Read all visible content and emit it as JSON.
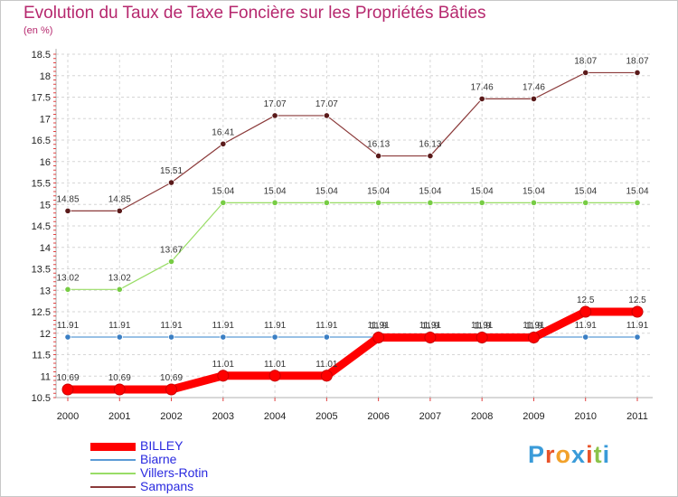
{
  "chart_data": {
    "type": "line",
    "title": "Evolution du Taux de Taxe Foncière sur les Propriétés Bâties",
    "ylabel": "(en %)",
    "ylim": [
      10.5,
      18.5
    ],
    "yticks": [
      "10.5",
      "11",
      "11.5",
      "12",
      "12.5",
      "13",
      "13.5",
      "14",
      "14.5",
      "15",
      "15.5",
      "16",
      "16.5",
      "17",
      "17.5",
      "18",
      "18.5"
    ],
    "categories": [
      "2000",
      "2001",
      "2002",
      "2003",
      "2004",
      "2005",
      "2006",
      "2007",
      "2008",
      "2009",
      "2010",
      "2011"
    ],
    "series": [
      {
        "name": "BILLEY",
        "color": "#ff0000",
        "marker": "#ff0000",
        "width": "thick",
        "values": [
          10.69,
          10.69,
          10.69,
          11.01,
          11.01,
          11.01,
          11.9,
          11.9,
          11.9,
          11.9,
          12.5,
          12.5
        ],
        "labels": [
          "10.69",
          "10.69",
          "10.69",
          "11.01",
          "11.01",
          "11.01",
          "11.9",
          "11.9",
          "11.9",
          "11.9",
          "12.5",
          "12.5"
        ]
      },
      {
        "name": "Biarne",
        "color": "#5b9bd5",
        "marker": "#3b7fc4",
        "width": "thin",
        "values": [
          11.91,
          11.91,
          11.91,
          11.91,
          11.91,
          11.91,
          11.91,
          11.91,
          11.91,
          11.91,
          11.91,
          11.91
        ],
        "labels": [
          "11.91",
          "11.91",
          "11.91",
          "11.91",
          "11.91",
          "11.91",
          "11.91",
          "11.91",
          "11.91",
          "11.91",
          "11.91",
          "11.91"
        ]
      },
      {
        "name": "Villers-Rotin",
        "color": "#99dd66",
        "marker": "#77cc44",
        "width": "thin",
        "values": [
          13.02,
          13.02,
          13.67,
          15.04,
          15.04,
          15.04,
          15.04,
          15.04,
          15.04,
          15.04,
          15.04,
          15.04
        ],
        "labels": [
          "13.02",
          "13.02",
          "13.67",
          "15.04",
          "15.04",
          "15.04",
          "15.04",
          "15.04",
          "15.04",
          "15.04",
          "15.04",
          "15.04"
        ]
      },
      {
        "name": "Sampans",
        "color": "#8b3a3a",
        "marker": "#5a1a1a",
        "width": "thin",
        "values": [
          14.85,
          14.85,
          15.51,
          16.41,
          17.07,
          17.07,
          16.13,
          16.13,
          17.46,
          17.46,
          18.07,
          18.07
        ],
        "labels": [
          "14.85",
          "14.85",
          "15.51",
          "16.41",
          "17.07",
          "17.07",
          "16.13",
          "16.13",
          "17.46",
          "17.46",
          "18.07",
          "18.07"
        ]
      }
    ]
  },
  "logo": {
    "letters": [
      "P",
      "r",
      "o",
      "x",
      "i",
      "t",
      "i"
    ],
    "colors": [
      "#3a9bd9",
      "#e8532a",
      "#f2a12a",
      "#3a9bd9",
      "#e8532a",
      "#8bc34a",
      "#3a9bd9"
    ]
  }
}
